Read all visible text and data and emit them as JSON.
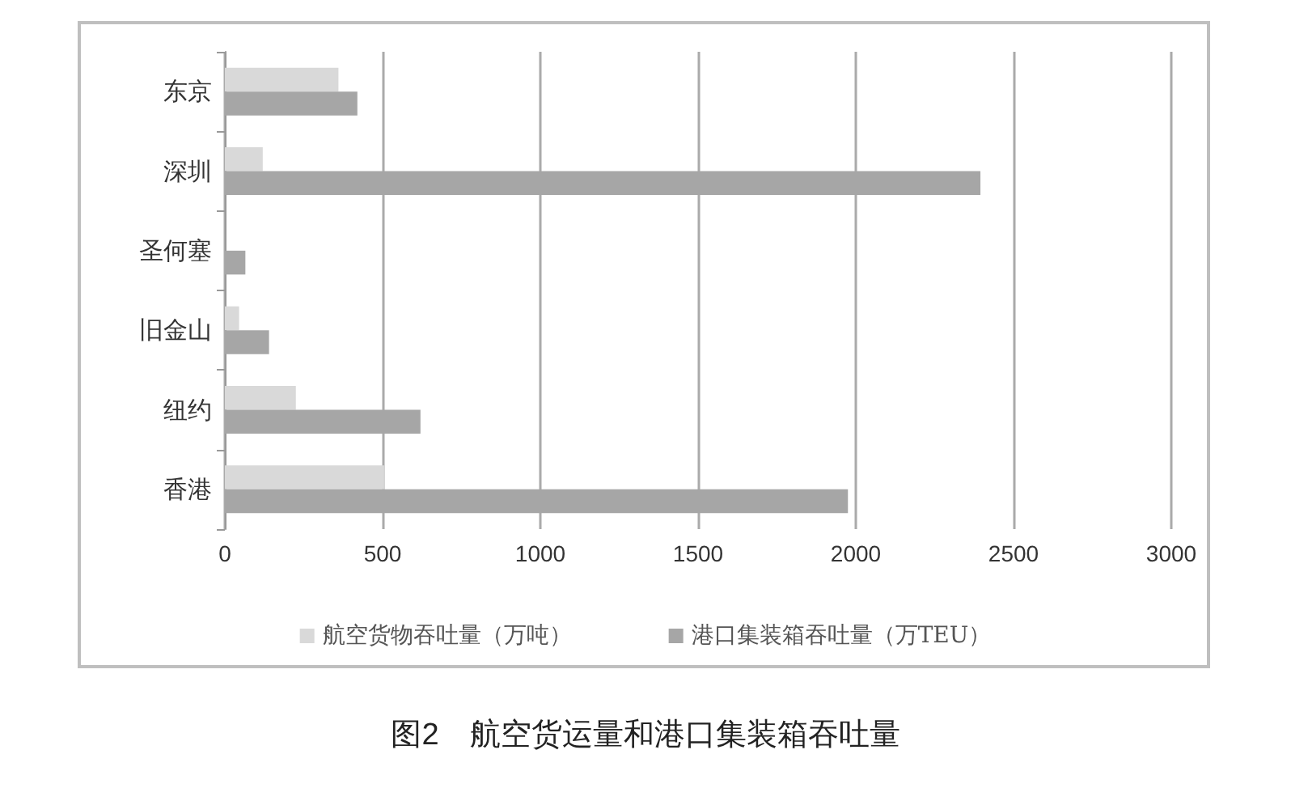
{
  "chart_data": {
    "type": "bar",
    "orientation": "horizontal",
    "title": "图2　航空货运量和港口集装箱吞吐量",
    "categories": [
      "东京",
      "深圳",
      "圣何塞",
      "旧金山",
      "纽约",
      "香港"
    ],
    "series": [
      {
        "name": "航空货物吞吐量（万吨）",
        "color": "#d9d9d9",
        "values": [
          360,
          120,
          null,
          45,
          225,
          505
        ]
      },
      {
        "name": "港口集装箱吞吐量（万TEU）",
        "color": "#a6a6a6",
        "values": [
          420,
          2395,
          65,
          140,
          620,
          1975
        ]
      }
    ],
    "xlim": [
      0,
      3000
    ],
    "xticks": [
      0,
      500,
      1000,
      1500,
      2000,
      2500,
      3000
    ],
    "grid": "x",
    "legend": "bottom"
  }
}
